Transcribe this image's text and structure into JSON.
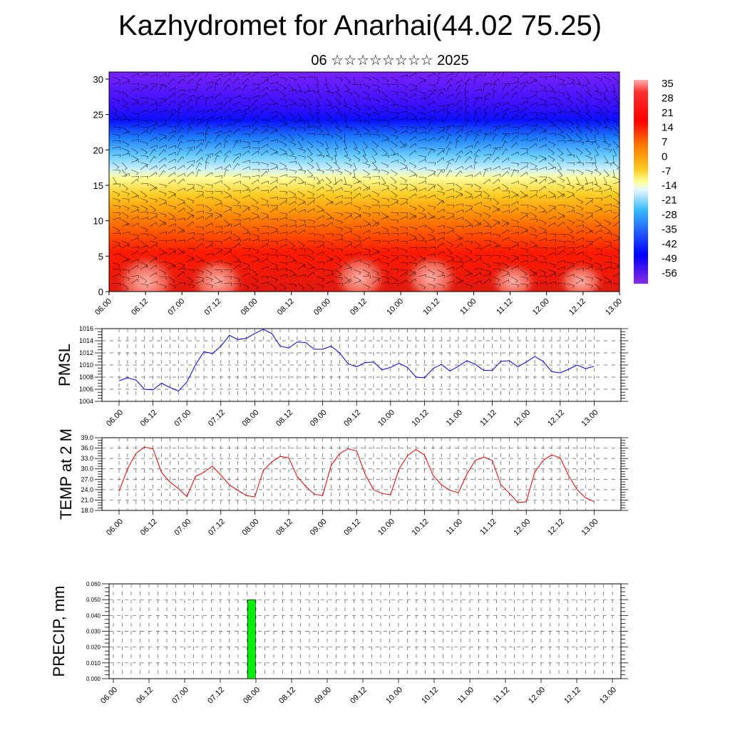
{
  "title": "Kazhydromet for Anarhai(44.02 75.25)",
  "subtitle": "06 ☆☆☆☆☆☆☆☆ 2025",
  "time_labels": [
    "06.00",
    "06.12",
    "07.00",
    "07.12",
    "08.00",
    "08.12",
    "09.00",
    "09.12",
    "10.00",
    "10.12",
    "11.00",
    "11.12",
    "12.00",
    "12.12",
    "13.00"
  ],
  "colors": {
    "pmsl_line": "#0000dd",
    "temp_line": "#dd0000",
    "precip_bar": "#00ee00"
  },
  "chart_data": [
    {
      "type": "heatmap",
      "name": "cross-section",
      "title": "",
      "y_ticks": [
        0,
        5,
        10,
        15,
        20,
        25,
        30
      ],
      "ylim": [
        0,
        31
      ],
      "x_labels": [
        "06.00",
        "06.12",
        "07.00",
        "07.12",
        "08.00",
        "08.12",
        "09.00",
        "09.12",
        "10.00",
        "10.12",
        "11.00",
        "11.12",
        "12.00",
        "12.12",
        "13.00"
      ],
      "colorbar_labels": [
        "35",
        "28",
        "21",
        "14",
        "7",
        "0",
        "-7",
        "-14",
        "-21",
        "-28",
        "-35",
        "-42",
        "-49",
        "-56"
      ],
      "overlay": "wind barbs",
      "grid": false
    },
    {
      "type": "line",
      "name": "PMSL",
      "ylabel": "PMSL",
      "ylim": [
        1004,
        1016
      ],
      "y_ticks": [
        "1004",
        "1006",
        "1008",
        "1010",
        "1012",
        "1014",
        "1016"
      ],
      "x_labels": [
        "06.00",
        "06.12",
        "07.00",
        "07.12",
        "08.00",
        "08.12",
        "09.00",
        "09.12",
        "10.00",
        "10.12",
        "11.00",
        "11.12",
        "12.00",
        "12.12",
        "13.00"
      ],
      "values": [
        1007.4,
        1007.9,
        1007.5,
        1006.0,
        1005.9,
        1007.0,
        1006.3,
        1005.7,
        1007.2,
        1010.0,
        1012.2,
        1011.9,
        1013.1,
        1014.9,
        1014.2,
        1014.4,
        1015.2,
        1015.9,
        1015.2,
        1013.1,
        1012.8,
        1013.8,
        1013.7,
        1012.6,
        1012.6,
        1013.1,
        1012.0,
        1010.2,
        1009.7,
        1010.4,
        1010.5,
        1009.2,
        1009.6,
        1010.3,
        1009.6,
        1008.0,
        1007.9,
        1009.4,
        1010.1,
        1009.0,
        1009.8,
        1010.7,
        1010.1,
        1009.1,
        1009.1,
        1010.6,
        1010.7,
        1009.7,
        1010.5,
        1011.4,
        1010.6,
        1008.9,
        1008.7,
        1009.3,
        1010.0,
        1009.4,
        1009.8
      ],
      "grid": true
    },
    {
      "type": "line",
      "name": "TEMP at 2 M",
      "ylabel": "TEMP at 2 M",
      "ylim": [
        18,
        39
      ],
      "y_ticks": [
        "18.0",
        "21.0",
        "24.0",
        "27.0",
        "30.0",
        "33.0",
        "36.0",
        "39.0"
      ],
      "x_labels": [
        "06.00",
        "06.12",
        "07.00",
        "07.12",
        "08.00",
        "08.12",
        "09.00",
        "09.12",
        "10.00",
        "10.12",
        "11.00",
        "11.12",
        "12.00",
        "12.12",
        "13.00"
      ],
      "values": [
        23.5,
        30.0,
        34.5,
        36.3,
        35.8,
        29.0,
        26.2,
        24.3,
        22.0,
        27.8,
        29.0,
        30.8,
        28.2,
        25.4,
        23.8,
        22.3,
        21.9,
        29.5,
        32.0,
        33.6,
        33.2,
        27.8,
        25.0,
        22.7,
        22.3,
        31.0,
        34.4,
        35.8,
        35.2,
        28.5,
        24.0,
        22.9,
        22.5,
        30.0,
        33.8,
        35.6,
        34.0,
        28.2,
        25.4,
        23.8,
        23.1,
        28.5,
        32.5,
        33.4,
        32.4,
        25.5,
        23.0,
        20.3,
        20.5,
        29.0,
        32.5,
        34.0,
        33.2,
        28.0,
        24.0,
        21.6,
        20.6
      ],
      "grid": true
    },
    {
      "type": "bar",
      "name": "PRECIP, mm",
      "ylabel": "PRECIP, mm",
      "ylim": [
        0,
        0.06
      ],
      "y_ticks": [
        "0.000",
        "0.010",
        "0.020",
        "0.030",
        "0.040",
        "0.050",
        "0.060"
      ],
      "x_labels": [
        "06.00",
        "06.12",
        "07.00",
        "07.12",
        "08.00",
        "08.12",
        "09.00",
        "09.12",
        "10.00",
        "10.12",
        "11.00",
        "11.12",
        "12.00",
        "12.12",
        "13.00"
      ],
      "bars": [
        {
          "step": 15.5,
          "value": 0.05
        }
      ],
      "grid": true
    }
  ]
}
